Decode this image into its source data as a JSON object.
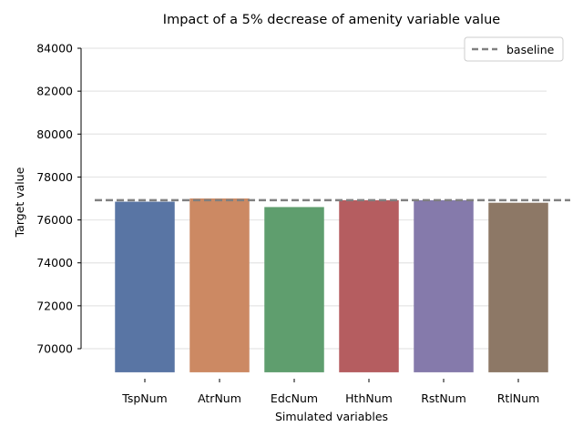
{
  "chart_data": {
    "type": "bar",
    "title": "Impact of a 5% decrease of amenity variable value",
    "xlabel": "Simulated variables",
    "ylabel": "Target value",
    "categories": [
      "TspNum",
      "AtrNum",
      "EdcNum",
      "HthNum",
      "RstNum",
      "RtlNum"
    ],
    "values": [
      76850,
      77000,
      76600,
      76920,
      76920,
      76800
    ],
    "bar_base": 68900,
    "colors": [
      "#5975a4",
      "#cc8963",
      "#5f9e6e",
      "#b55d60",
      "#857aab",
      "#8d7866"
    ],
    "ylim": [
      68800,
      84000
    ],
    "yticks": [
      70000,
      72000,
      74000,
      76000,
      78000,
      80000,
      82000,
      84000
    ],
    "ytick_labels": [
      "70000",
      "72000",
      "74000",
      "76000",
      "78000",
      "80000",
      "82000",
      "84000"
    ],
    "baseline": {
      "name": "baseline",
      "value": 76920,
      "color": "#808080"
    },
    "grid": "y",
    "legend_position": "top-right"
  }
}
